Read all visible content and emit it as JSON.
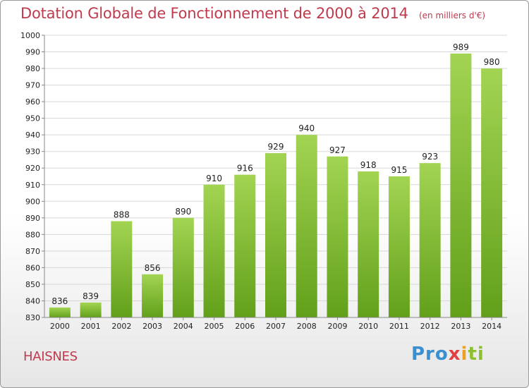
{
  "chart_data": {
    "type": "bar",
    "title": "Dotation Globale de Fonctionnement de 2000 à 2014",
    "subtitle": "(en milliers d'€)",
    "categories": [
      "2000",
      "2001",
      "2002",
      "2003",
      "2004",
      "2005",
      "2006",
      "2007",
      "2008",
      "2009",
      "2010",
      "2011",
      "2012",
      "2013",
      "2014"
    ],
    "values": [
      836,
      839,
      888,
      856,
      890,
      910,
      916,
      929,
      940,
      927,
      918,
      915,
      923,
      989,
      980
    ],
    "ylim": [
      830,
      1000
    ],
    "ytick_step": 10,
    "grid": true,
    "bar_color": "#7cc030"
  },
  "footer": {
    "commune": "HAISNES",
    "logo": [
      "Pro",
      "x",
      "i",
      "ti"
    ]
  }
}
